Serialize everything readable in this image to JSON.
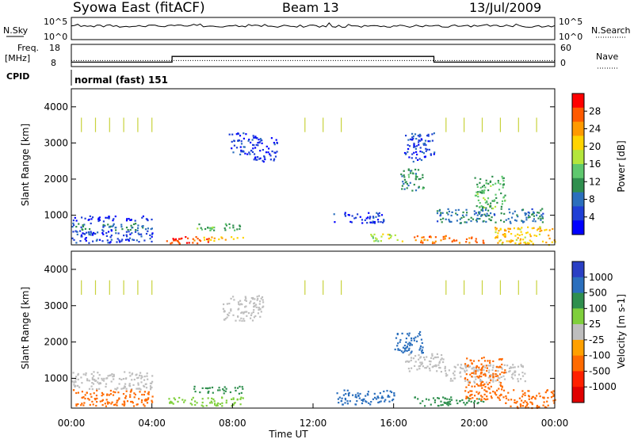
{
  "header": {
    "title": "Syowa East (fitACF)",
    "beam": "Beam 13",
    "date": "13/Jul/2009"
  },
  "noise_panel": {
    "left_label": "N.Sky",
    "right_label": "N.Search",
    "tick_top": "10^5",
    "tick_bottom": "10^0"
  },
  "freq_panel": {
    "left_label_1": "Freq.",
    "left_label_2": "[MHz]",
    "right_label": "Nave",
    "left_ticks": [
      "18",
      "8"
    ],
    "right_ticks": [
      "60",
      "0"
    ],
    "freq_steps": [
      {
        "t": 0,
        "mhz": 9.5
      },
      {
        "t": 5,
        "mhz": 12.5
      },
      {
        "t": 18,
        "mhz": 9.5
      },
      {
        "t": 24,
        "mhz": 9.5
      }
    ],
    "nave_level": 14
  },
  "cpid": {
    "label": "CPID",
    "mode": "normal (fast) 151"
  },
  "chart_data": [
    {
      "type": "heatmap",
      "name": "power",
      "ylabel": "Slant Range [km]",
      "yticks": [
        "4000",
        "3000",
        "2000",
        "1000"
      ],
      "ylim": [
        180,
        4500
      ],
      "xlim": [
        0,
        24
      ],
      "colorbar": {
        "label": "Power [dB]",
        "ticks": [
          "28",
          "24",
          "20",
          "16",
          "12",
          "8",
          "4"
        ],
        "colors": [
          "#ff0000",
          "#ff5a00",
          "#ff9a00",
          "#ffd400",
          "#b4e63c",
          "#5fc86e",
          "#2f8f4e",
          "#2b6fbd",
          "#1f3fd6",
          "#0000ff"
        ]
      },
      "regions": [
        {
          "t0": 0.0,
          "t1": 4.0,
          "r0": 850,
          "r1": 1000,
          "val": 4
        },
        {
          "t0": 0.0,
          "t1": 4.0,
          "r0": 600,
          "r1": 800,
          "val": 10
        },
        {
          "t0": 0.0,
          "t1": 4.0,
          "r0": 250,
          "r1": 600,
          "val": 6
        },
        {
          "t0": 4.7,
          "t1": 7.0,
          "r0": 220,
          "r1": 430,
          "val": 28
        },
        {
          "t0": 6.5,
          "t1": 8.5,
          "r0": 300,
          "r1": 420,
          "val": 22
        },
        {
          "t0": 6.0,
          "t1": 8.5,
          "r0": 600,
          "r1": 780,
          "val": 14
        },
        {
          "t0": 7.8,
          "t1": 9.0,
          "r0": 2700,
          "r1": 3300,
          "val": 6
        },
        {
          "t0": 9.0,
          "t1": 10.2,
          "r0": 2500,
          "r1": 3200,
          "val": 5
        },
        {
          "t0": 13.0,
          "t1": 15.5,
          "r0": 800,
          "r1": 1100,
          "val": 6
        },
        {
          "t0": 14.8,
          "t1": 16.5,
          "r0": 300,
          "r1": 500,
          "val": 18
        },
        {
          "t0": 16.3,
          "t1": 17.5,
          "r0": 1700,
          "r1": 2300,
          "val": 12
        },
        {
          "t0": 16.5,
          "t1": 18.0,
          "r0": 2500,
          "r1": 3300,
          "val": 6
        },
        {
          "t0": 17.0,
          "t1": 20.5,
          "r0": 250,
          "r1": 450,
          "val": 26
        },
        {
          "t0": 18.0,
          "t1": 23.5,
          "r0": 800,
          "r1": 1200,
          "val": 10
        },
        {
          "t0": 20.0,
          "t1": 21.5,
          "r0": 1200,
          "r1": 2100,
          "val": 14
        },
        {
          "t0": 21.0,
          "t1": 24.0,
          "r0": 200,
          "r1": 700,
          "val": 22
        }
      ],
      "stripes": [
        {
          "t": 0.5,
          "r0": 3300,
          "r1": 3700
        },
        {
          "t": 1.2,
          "r0": 3300,
          "r1": 3700
        },
        {
          "t": 1.9,
          "r0": 3300,
          "r1": 3700
        },
        {
          "t": 2.6,
          "r0": 3300,
          "r1": 3700
        },
        {
          "t": 3.3,
          "r0": 3300,
          "r1": 3700
        },
        {
          "t": 4.0,
          "r0": 3300,
          "r1": 3700
        },
        {
          "t": 11.6,
          "r0": 3300,
          "r1": 3700
        },
        {
          "t": 12.5,
          "r0": 3300,
          "r1": 3700
        },
        {
          "t": 13.4,
          "r0": 3300,
          "r1": 3700
        },
        {
          "t": 18.6,
          "r0": 3300,
          "r1": 3700
        },
        {
          "t": 19.5,
          "r0": 3300,
          "r1": 3700
        },
        {
          "t": 20.4,
          "r0": 3300,
          "r1": 3700
        },
        {
          "t": 21.3,
          "r0": 3300,
          "r1": 3700
        },
        {
          "t": 22.2,
          "r0": 3300,
          "r1": 3700
        },
        {
          "t": 23.1,
          "r0": 3300,
          "r1": 3700
        }
      ]
    },
    {
      "type": "heatmap",
      "name": "velocity",
      "ylabel": "Slant Range [km]",
      "yticks": [
        "4000",
        "3000",
        "2000",
        "1000"
      ],
      "ylim": [
        180,
        4500
      ],
      "xlim": [
        0,
        24
      ],
      "xticks": [
        "00:00",
        "04:00",
        "08:00",
        "12:00",
        "16:00",
        "20:00",
        "00:00"
      ],
      "xlabel": "Time UT",
      "colorbar": {
        "label": "Velocity [m s-1]",
        "ticks": [
          "1000",
          "500",
          "100",
          "25",
          "-25",
          "-100",
          "-500",
          "-1000"
        ],
        "colors": [
          "#2a3fc4",
          "#2b6fbd",
          "#2f8f4e",
          "#7fcf3c",
          "#bebebe",
          "#ffa000",
          "#ff6a00",
          "#ff2000",
          "#e00000"
        ]
      },
      "regions": [
        {
          "t0": 0.0,
          "t1": 4.0,
          "r0": 850,
          "r1": 1200,
          "val": 0
        },
        {
          "t0": 0.0,
          "t1": 4.0,
          "r0": 700,
          "r1": 850,
          "val": 0
        },
        {
          "t0": 0.0,
          "t1": 4.0,
          "r0": 250,
          "r1": 700,
          "val": -150
        },
        {
          "t0": 4.7,
          "t1": 8.5,
          "r0": 250,
          "r1": 500,
          "val": 50
        },
        {
          "t0": 6.0,
          "t1": 8.5,
          "r0": 600,
          "r1": 800,
          "val": 120
        },
        {
          "t0": 7.5,
          "t1": 9.5,
          "r0": 2600,
          "r1": 3300,
          "val": 0
        },
        {
          "t0": 13.0,
          "t1": 16.0,
          "r0": 300,
          "r1": 700,
          "val": 300
        },
        {
          "t0": 16.0,
          "t1": 17.5,
          "r0": 1700,
          "r1": 2300,
          "val": 300
        },
        {
          "t0": 16.5,
          "t1": 18.5,
          "r0": 1200,
          "r1": 1700,
          "val": 0
        },
        {
          "t0": 17.0,
          "t1": 20.5,
          "r0": 250,
          "r1": 500,
          "val": 200
        },
        {
          "t0": 18.5,
          "t1": 22.5,
          "r0": 900,
          "r1": 1400,
          "val": 0
        },
        {
          "t0": 19.5,
          "t1": 21.5,
          "r0": 400,
          "r1": 1600,
          "val": -200
        },
        {
          "t0": 21.5,
          "t1": 24.0,
          "r0": 200,
          "r1": 700,
          "val": -300
        }
      ],
      "stripes": [
        {
          "t": 0.5,
          "r0": 3300,
          "r1": 3700
        },
        {
          "t": 1.2,
          "r0": 3300,
          "r1": 3700
        },
        {
          "t": 1.9,
          "r0": 3300,
          "r1": 3700
        },
        {
          "t": 2.6,
          "r0": 3300,
          "r1": 3700
        },
        {
          "t": 3.3,
          "r0": 3300,
          "r1": 3700
        },
        {
          "t": 4.0,
          "r0": 3300,
          "r1": 3700
        },
        {
          "t": 11.6,
          "r0": 3300,
          "r1": 3700
        },
        {
          "t": 12.5,
          "r0": 3300,
          "r1": 3700
        },
        {
          "t": 13.4,
          "r0": 3300,
          "r1": 3700
        },
        {
          "t": 18.6,
          "r0": 3300,
          "r1": 3700
        },
        {
          "t": 19.5,
          "r0": 3300,
          "r1": 3700
        },
        {
          "t": 20.4,
          "r0": 3300,
          "r1": 3700
        },
        {
          "t": 21.3,
          "r0": 3300,
          "r1": 3700
        },
        {
          "t": 22.2,
          "r0": 3300,
          "r1": 3700
        },
        {
          "t": 23.1,
          "r0": 3300,
          "r1": 3700
        }
      ]
    }
  ]
}
